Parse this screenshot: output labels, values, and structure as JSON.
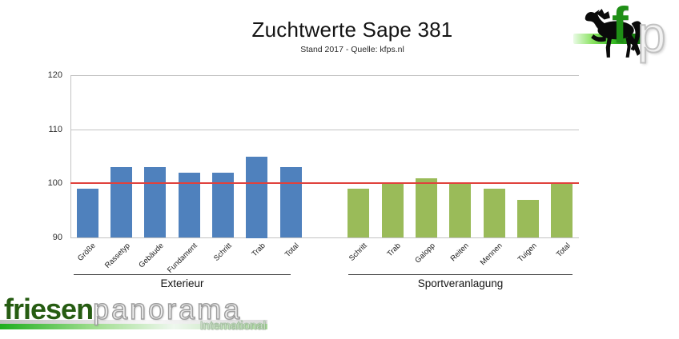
{
  "header": {
    "title": "Zuchtwerte Sape 381",
    "subtitle": "Stand 2017 - Quelle: kfps.nl"
  },
  "kfp_logo": {
    "letter_f": "f",
    "letter_p": "p"
  },
  "footer_logo": {
    "word_bold": "friesen",
    "word_outline": "panorama",
    "subtitle": "International"
  },
  "chart_data": {
    "type": "bar",
    "title": "Zuchtwerte Sape 381",
    "subtitle": "Stand 2017 - Quelle: kfps.nl",
    "ylim": [
      90,
      120
    ],
    "yticks": [
      90,
      100,
      110,
      120
    ],
    "grid": true,
    "legend_position": "none",
    "reference_line": {
      "value": 100,
      "color": "#e0413c"
    },
    "colors": {
      "grid": "#c3c3c3",
      "axis": "#c3c3c3"
    },
    "groups": [
      {
        "name": "Exterieur",
        "color": "#4f81bd",
        "categories": [
          "Größe",
          "Rassetyp",
          "Gebäude",
          "Fundament",
          "Schritt",
          "Trab",
          "Total"
        ],
        "values": [
          99,
          103,
          103,
          102,
          102,
          105,
          103
        ]
      },
      {
        "name": "Sportveranlagung",
        "color": "#9abb59",
        "categories": [
          "Schritt",
          "Trab",
          "Galopp",
          "Reiten",
          "Mennen",
          "Tuigen",
          "Total"
        ],
        "values": [
          99,
          100,
          101,
          100,
          99,
          97,
          100
        ]
      }
    ]
  }
}
